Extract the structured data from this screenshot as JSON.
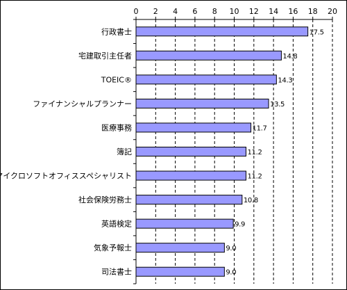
{
  "chart_data": {
    "type": "bar",
    "orientation": "horizontal",
    "xlim": [
      0,
      20
    ],
    "x_ticks": [
      "0",
      "2",
      "4",
      "6",
      "8",
      "10",
      "12",
      "14",
      "16",
      "18",
      "20"
    ],
    "x_axis_position": "top",
    "grid": "vertical dashed",
    "legend": "none",
    "colors": {
      "bar_fill": "#9999ff",
      "bar_stroke": "#000000"
    },
    "categories": [
      "行政書士",
      "宅建取引主任者",
      "TOEIC®",
      "ファイナンシャルプランナー",
      "医療事務",
      "簿記",
      "マイクロソフトオフィススペシャリスト",
      "社会保険労務士",
      "英語検定",
      "気象予報士",
      "司法書士"
    ],
    "values": [
      17.5,
      14.8,
      14.3,
      13.5,
      11.7,
      11.2,
      11.2,
      10.8,
      9.9,
      9.0,
      9.0
    ],
    "data_labels": [
      "17.5",
      "14.8",
      "14.3",
      "13.5",
      "11.7",
      "11.2",
      "11.2",
      "10.8",
      "9.9",
      "9.0",
      "9.0"
    ]
  }
}
